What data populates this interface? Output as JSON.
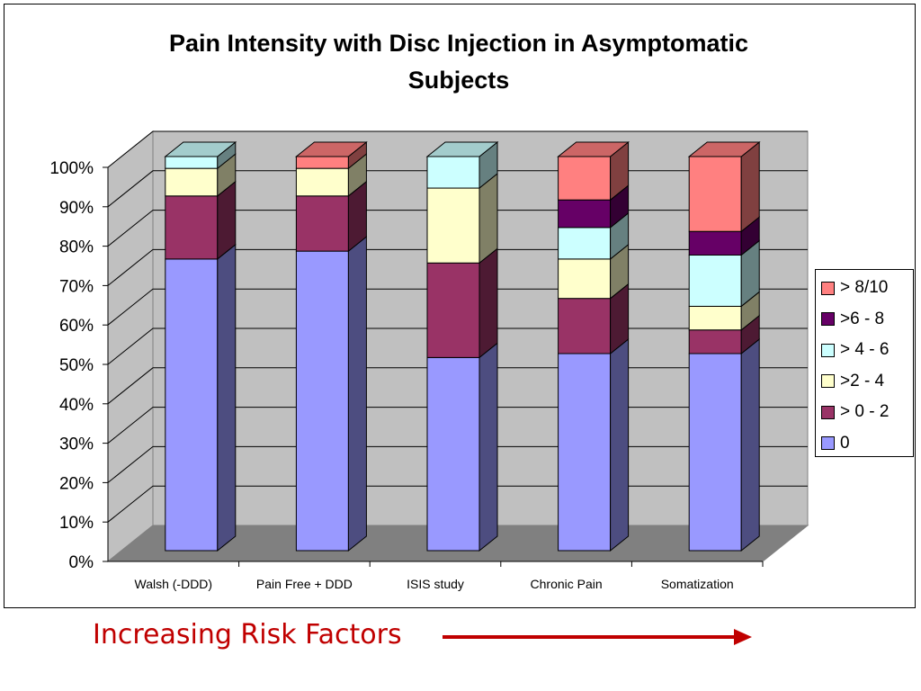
{
  "chart_data": {
    "type": "bar",
    "subtype": "stacked-100-percent-3d",
    "title": "Pain Intensity with Disc Injection in Asymptomatic Subjects",
    "xlabel": "",
    "ylabel": "",
    "ylim": [
      0,
      100
    ],
    "y_ticks": [
      "0%",
      "10%",
      "20%",
      "30%",
      "40%",
      "50%",
      "60%",
      "70%",
      "80%",
      "90%",
      "100%"
    ],
    "categories": [
      "Walsh (-DDD)",
      "Pain Free + DDD",
      "ISIS study",
      "Chronic Pain",
      "Somatization"
    ],
    "series": [
      {
        "name": "0",
        "color": "#9999ff",
        "values": [
          74,
          76,
          49,
          50,
          50
        ]
      },
      {
        "name": "> 0 - 2",
        "color": "#993366",
        "values": [
          16,
          14,
          24,
          14,
          6
        ]
      },
      {
        "name": ">2 - 4",
        "color": "#ffffcc",
        "values": [
          7,
          7,
          19,
          10,
          6
        ]
      },
      {
        "name": "> 4 - 6",
        "color": "#ccffff",
        "values": [
          3,
          0,
          8,
          8,
          13
        ]
      },
      {
        "name": ">6 - 8",
        "color": "#660066",
        "values": [
          0,
          0,
          0,
          7,
          6
        ]
      },
      {
        "name": "> 8/10",
        "color": "#ff8080",
        "values": [
          0,
          3,
          0,
          11,
          19
        ]
      }
    ],
    "legend_position": "right",
    "grid": true
  },
  "caption": {
    "text": "Increasing Risk Factors",
    "color": "#c00000"
  }
}
